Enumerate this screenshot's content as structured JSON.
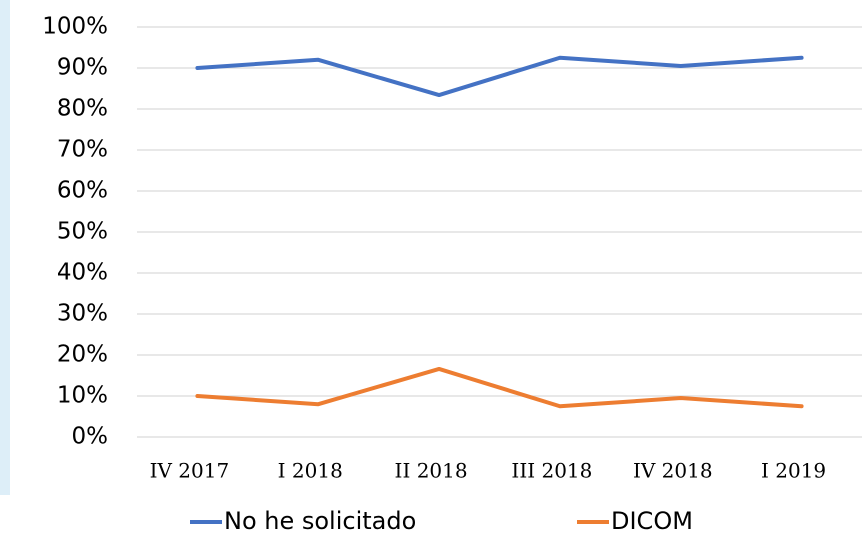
{
  "chart_data": {
    "type": "line",
    "categories": [
      "IV 2017",
      "I 2018",
      "II 2018",
      "III 2018",
      "IV 2018",
      "I 2019"
    ],
    "series": [
      {
        "name": "No he solicitado",
        "color": "#4472c4",
        "values": [
          90,
          92,
          83.4,
          92.5,
          90.5,
          92.5
        ]
      },
      {
        "name": "DICOM",
        "color": "#ed7d31",
        "values": [
          10,
          8,
          16.6,
          7.5,
          9.5,
          7.5
        ]
      }
    ],
    "ylim": [
      0,
      100
    ],
    "yticks": [
      {
        "value": 0,
        "label": "0%"
      },
      {
        "value": 10,
        "label": "10%"
      },
      {
        "value": 20,
        "label": "20%"
      },
      {
        "value": 30,
        "label": "30%"
      },
      {
        "value": 40,
        "label": "40%"
      },
      {
        "value": 50,
        "label": "50%"
      },
      {
        "value": 60,
        "label": "60%"
      },
      {
        "value": 70,
        "label": "70%"
      },
      {
        "value": 80,
        "label": "80%"
      },
      {
        "value": 90,
        "label": "90%"
      },
      {
        "value": 100,
        "label": "100%"
      }
    ],
    "grid": true,
    "legend": "bottom"
  }
}
